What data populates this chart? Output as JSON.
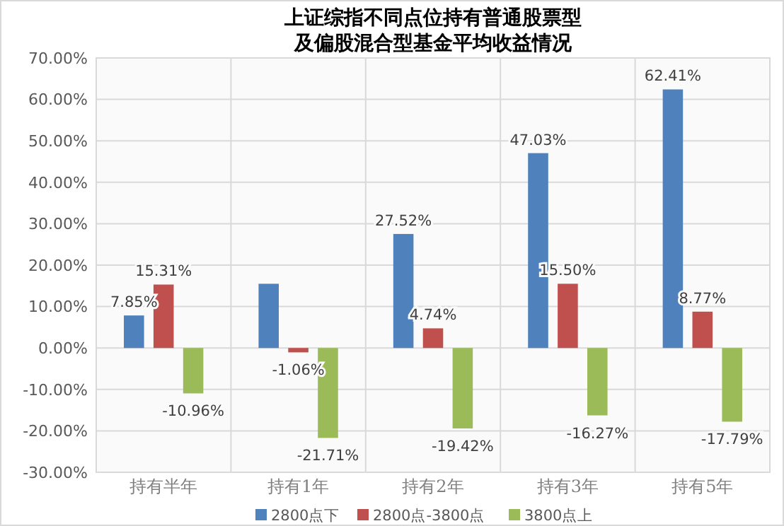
{
  "chart_data": {
    "type": "bar",
    "title": "上证综指不同点位持有普通股票型及偏股混合型基金平均收益情况",
    "categories": [
      "持有半年",
      "持有1年",
      "持有2年",
      "持有3年",
      "持有5年"
    ],
    "series": [
      {
        "name": "2800点下",
        "color": "#4f81bd",
        "values": [
          7.85,
          15.5,
          27.52,
          47.03,
          62.41
        ],
        "value_labels": [
          "7.85%",
          null,
          "27.52%",
          "47.03%",
          "62.41%"
        ]
      },
      {
        "name": "2800点-3800点",
        "color": "#c0504d",
        "values": [
          15.31,
          -1.06,
          4.74,
          15.5,
          8.77
        ],
        "value_labels": [
          "15.31%",
          "-1.06%",
          "4.74%",
          "15.50%",
          "8.77%"
        ]
      },
      {
        "name": "3800点上",
        "color": "#9bbb59",
        "values": [
          -10.96,
          -21.71,
          -19.42,
          -16.27,
          -17.79
        ],
        "value_labels": [
          "-10.96%",
          "-21.71%",
          "-19.42%",
          "-16.27%",
          "-17.79%"
        ]
      }
    ],
    "ylim": [
      -30,
      70
    ],
    "yticks": [
      {
        "value": -30,
        "label": "-30.00%"
      },
      {
        "value": -20,
        "label": "-20.00%"
      },
      {
        "value": -10,
        "label": "-10.00%"
      },
      {
        "value": 0,
        "label": "0.00%"
      },
      {
        "value": 10,
        "label": "10.00%"
      },
      {
        "value": 20,
        "label": "20.00%"
      },
      {
        "value": 30,
        "label": "30.00%"
      },
      {
        "value": 40,
        "label": "40.00%"
      },
      {
        "value": 50,
        "label": "50.00%"
      },
      {
        "value": 60,
        "label": "60.00%"
      },
      {
        "value": 70,
        "label": "70.00%"
      }
    ],
    "grid": true,
    "legend": "bottom"
  }
}
